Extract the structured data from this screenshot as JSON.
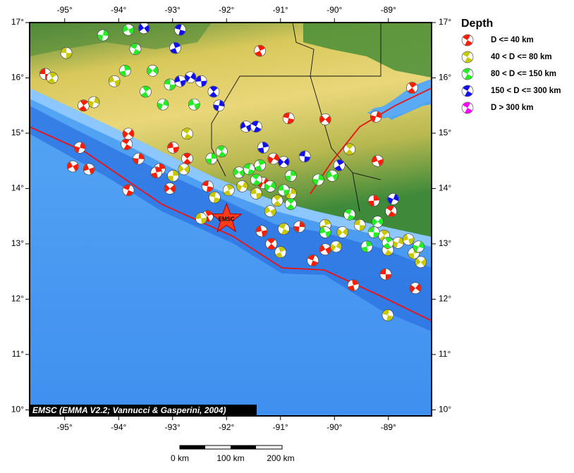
{
  "map": {
    "xlim": [
      -95.65,
      -88.2
    ],
    "ylim": [
      9.89,
      17
    ],
    "xticks": [
      {
        "value": -95,
        "label": "-95°"
      },
      {
        "value": -94,
        "label": "-94°"
      },
      {
        "value": -93,
        "label": "-93°"
      },
      {
        "value": -92,
        "label": "-92°"
      },
      {
        "value": -91,
        "label": "-91°"
      },
      {
        "value": -90,
        "label": "-90°"
      },
      {
        "value": -89,
        "label": "-89°"
      }
    ],
    "yticks": [
      {
        "value": 17,
        "label": "17°"
      },
      {
        "value": 16,
        "label": "16°"
      },
      {
        "value": 15,
        "label": "15°"
      },
      {
        "value": 14,
        "label": "14°"
      },
      {
        "value": 13,
        "label": "13°"
      },
      {
        "value": 12,
        "label": "12°"
      },
      {
        "value": 11,
        "label": "11°"
      },
      {
        "value": 10,
        "label": "10°"
      }
    ],
    "credit": "EMSC (EMMA V2.2; Vannucci & Gasperini, 2004)",
    "star": {
      "label": "EMSC",
      "lon": -92.0,
      "lat": 13.45
    }
  },
  "legend": {
    "title": "Depth",
    "entries": [
      {
        "label": "D <= 40 km",
        "color": "#ff1a00"
      },
      {
        "label": "40 < D <= 80 km",
        "color": "#c8c800"
      },
      {
        "label": "80 < D <= 150 km",
        "color": "#22ee22"
      },
      {
        "label": "150 < D <= 300 km",
        "color": "#1010ee"
      },
      {
        "label": "D > 300 km",
        "color": "#ff00ff"
      }
    ]
  },
  "scale_bar": {
    "labels": [
      "0 km",
      "100 km",
      "200 km"
    ]
  },
  "events": [
    {
      "lon": -95.36,
      "lat": 16.07,
      "depth": 0
    },
    {
      "lon": -94.65,
      "lat": 15.5,
      "depth": 0
    },
    {
      "lon": -94.72,
      "lat": 14.74,
      "depth": 0
    },
    {
      "lon": -94.55,
      "lat": 14.35,
      "depth": 0
    },
    {
      "lon": -93.85,
      "lat": 14.8,
      "depth": 0
    },
    {
      "lon": -93.24,
      "lat": 14.35,
      "depth": 0
    },
    {
      "lon": -93.05,
      "lat": 14.0,
      "depth": 0
    },
    {
      "lon": -92.35,
      "lat": 14.04,
      "depth": 0
    },
    {
      "lon": -92.35,
      "lat": 13.5,
      "depth": 0
    },
    {
      "lon": -91.32,
      "lat": 14.1,
      "depth": 0
    },
    {
      "lon": -91.35,
      "lat": 13.23,
      "depth": 0
    },
    {
      "lon": -91.17,
      "lat": 13.0,
      "depth": 0
    },
    {
      "lon": -90.65,
      "lat": 13.31,
      "depth": 0
    },
    {
      "lon": -90.17,
      "lat": 12.9,
      "depth": 0
    },
    {
      "lon": -90.4,
      "lat": 12.7,
      "depth": 0
    },
    {
      "lon": -89.65,
      "lat": 12.25,
      "depth": 0
    },
    {
      "lon": -88.5,
      "lat": 12.2,
      "depth": 0
    },
    {
      "lon": -89.05,
      "lat": 12.45,
      "depth": 0
    },
    {
      "lon": -88.56,
      "lat": 15.82,
      "depth": 0
    },
    {
      "lon": -89.23,
      "lat": 15.3,
      "depth": 0
    },
    {
      "lon": -89.2,
      "lat": 14.5,
      "depth": 0
    },
    {
      "lon": -88.95,
      "lat": 13.59,
      "depth": 0
    },
    {
      "lon": -89.27,
      "lat": 13.78,
      "depth": 0
    },
    {
      "lon": -90.17,
      "lat": 15.25,
      "depth": 0
    },
    {
      "lon": -90.85,
      "lat": 15.27,
      "depth": 0
    },
    {
      "lon": -91.38,
      "lat": 16.49,
      "depth": 0
    },
    {
      "lon": -91.13,
      "lat": 14.54,
      "depth": 0
    },
    {
      "lon": -92.99,
      "lat": 14.74,
      "depth": 0
    },
    {
      "lon": -92.73,
      "lat": 14.54,
      "depth": 0
    },
    {
      "lon": -93.63,
      "lat": 14.54,
      "depth": 0
    },
    {
      "lon": -94.85,
      "lat": 14.4,
      "depth": 0
    },
    {
      "lon": -93.82,
      "lat": 13.97,
      "depth": 0
    },
    {
      "lon": -93.3,
      "lat": 14.29,
      "depth": 0
    },
    {
      "lon": -93.82,
      "lat": 14.99,
      "depth": 0
    },
    {
      "lon": -94.97,
      "lat": 16.45,
      "depth": 1
    },
    {
      "lon": -95.23,
      "lat": 16.0,
      "depth": 1
    },
    {
      "lon": -94.46,
      "lat": 15.56,
      "depth": 1
    },
    {
      "lon": -94.08,
      "lat": 15.94,
      "depth": 1
    },
    {
      "lon": -92.73,
      "lat": 14.99,
      "depth": 1
    },
    {
      "lon": -92.99,
      "lat": 14.23,
      "depth": 1
    },
    {
      "lon": -92.79,
      "lat": 14.35,
      "depth": 1
    },
    {
      "lon": -92.22,
      "lat": 13.84,
      "depth": 1
    },
    {
      "lon": -91.96,
      "lat": 13.97,
      "depth": 1
    },
    {
      "lon": -91.71,
      "lat": 14.04,
      "depth": 1
    },
    {
      "lon": -91.45,
      "lat": 13.91,
      "depth": 1
    },
    {
      "lon": -91.06,
      "lat": 13.78,
      "depth": 1
    },
    {
      "lon": -90.81,
      "lat": 13.91,
      "depth": 1
    },
    {
      "lon": -91.19,
      "lat": 13.59,
      "depth": 1
    },
    {
      "lon": -90.94,
      "lat": 13.27,
      "depth": 1
    },
    {
      "lon": -90.17,
      "lat": 13.34,
      "depth": 1
    },
    {
      "lon": -89.85,
      "lat": 13.21,
      "depth": 1
    },
    {
      "lon": -89.53,
      "lat": 13.34,
      "depth": 1
    },
    {
      "lon": -89.08,
      "lat": 13.15,
      "depth": 1
    },
    {
      "lon": -88.82,
      "lat": 13.02,
      "depth": 1
    },
    {
      "lon": -88.63,
      "lat": 13.08,
      "depth": 1
    },
    {
      "lon": -89.01,
      "lat": 12.89,
      "depth": 1
    },
    {
      "lon": -88.53,
      "lat": 12.83,
      "depth": 1
    },
    {
      "lon": -88.4,
      "lat": 12.67,
      "depth": 1
    },
    {
      "lon": -89.01,
      "lat": 11.71,
      "depth": 1
    },
    {
      "lon": -91.0,
      "lat": 12.85,
      "depth": 1
    },
    {
      "lon": -89.97,
      "lat": 12.95,
      "depth": 1
    },
    {
      "lon": -92.47,
      "lat": 13.46,
      "depth": 1
    },
    {
      "lon": -89.72,
      "lat": 14.71,
      "depth": 1
    },
    {
      "lon": -94.29,
      "lat": 16.77,
      "depth": 2
    },
    {
      "lon": -93.82,
      "lat": 16.87,
      "depth": 2
    },
    {
      "lon": -93.69,
      "lat": 16.52,
      "depth": 2
    },
    {
      "lon": -93.88,
      "lat": 16.13,
      "depth": 2
    },
    {
      "lon": -93.37,
      "lat": 16.13,
      "depth": 2
    },
    {
      "lon": -93.05,
      "lat": 15.88,
      "depth": 2
    },
    {
      "lon": -93.5,
      "lat": 15.75,
      "depth": 2
    },
    {
      "lon": -93.18,
      "lat": 15.52,
      "depth": 2
    },
    {
      "lon": -92.6,
      "lat": 15.52,
      "depth": 2
    },
    {
      "lon": -92.09,
      "lat": 14.67,
      "depth": 2
    },
    {
      "lon": -92.28,
      "lat": 14.54,
      "depth": 2
    },
    {
      "lon": -91.77,
      "lat": 14.29,
      "depth": 2
    },
    {
      "lon": -91.58,
      "lat": 14.35,
      "depth": 2
    },
    {
      "lon": -91.38,
      "lat": 14.42,
      "depth": 2
    },
    {
      "lon": -91.19,
      "lat": 14.04,
      "depth": 2
    },
    {
      "lon": -90.94,
      "lat": 13.97,
      "depth": 2
    },
    {
      "lon": -90.81,
      "lat": 13.72,
      "depth": 2
    },
    {
      "lon": -90.3,
      "lat": 14.16,
      "depth": 2
    },
    {
      "lon": -90.04,
      "lat": 14.23,
      "depth": 2
    },
    {
      "lon": -89.72,
      "lat": 13.53,
      "depth": 2
    },
    {
      "lon": -89.4,
      "lat": 12.95,
      "depth": 2
    },
    {
      "lon": -89.2,
      "lat": 13.4,
      "depth": 2
    },
    {
      "lon": -89.27,
      "lat": 13.21,
      "depth": 2
    },
    {
      "lon": -89.01,
      "lat": 13.02,
      "depth": 2
    },
    {
      "lon": -88.44,
      "lat": 12.95,
      "depth": 2
    },
    {
      "lon": -90.17,
      "lat": 13.21,
      "depth": 2
    },
    {
      "lon": -91.45,
      "lat": 14.16,
      "depth": 2
    },
    {
      "lon": -90.81,
      "lat": 14.23,
      "depth": 2
    },
    {
      "lon": -93.53,
      "lat": 16.9,
      "depth": 3
    },
    {
      "lon": -92.86,
      "lat": 16.87,
      "depth": 3
    },
    {
      "lon": -92.95,
      "lat": 16.54,
      "depth": 3
    },
    {
      "lon": -92.67,
      "lat": 16.01,
      "depth": 3
    },
    {
      "lon": -92.47,
      "lat": 15.94,
      "depth": 3
    },
    {
      "lon": -92.24,
      "lat": 15.75,
      "depth": 3
    },
    {
      "lon": -92.14,
      "lat": 15.5,
      "depth": 3
    },
    {
      "lon": -91.64,
      "lat": 15.12,
      "depth": 3
    },
    {
      "lon": -91.45,
      "lat": 15.12,
      "depth": 3
    },
    {
      "lon": -91.32,
      "lat": 14.74,
      "depth": 3
    },
    {
      "lon": -90.94,
      "lat": 14.48,
      "depth": 3
    },
    {
      "lon": -90.55,
      "lat": 14.58,
      "depth": 3
    },
    {
      "lon": -89.91,
      "lat": 14.42,
      "depth": 3
    },
    {
      "lon": -88.91,
      "lat": 13.81,
      "depth": 3
    },
    {
      "lon": -92.86,
      "lat": 15.94,
      "depth": 3
    }
  ]
}
